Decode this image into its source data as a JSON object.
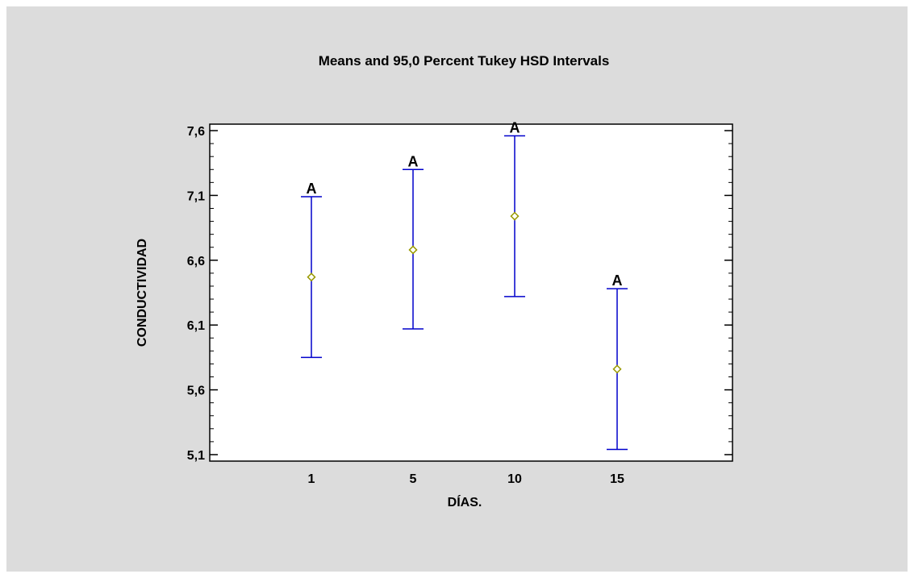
{
  "chart_data": {
    "type": "interval",
    "title": "Means and 95,0 Percent Tukey HSD Intervals",
    "xlabel": "DÍAS.",
    "ylabel": "CONDUCTIVIDAD",
    "categories": [
      "1",
      "5",
      "10",
      "15"
    ],
    "means": [
      6.47,
      6.68,
      6.94,
      5.76
    ],
    "lower": [
      5.85,
      6.07,
      6.32,
      5.14
    ],
    "upper": [
      7.09,
      7.3,
      7.56,
      6.38
    ],
    "group_labels": [
      "A",
      "A",
      "A",
      "A"
    ],
    "ylim": [
      5.05,
      7.65
    ],
    "yticks": [
      5.1,
      5.6,
      6.1,
      6.6,
      7.1,
      7.6
    ],
    "ytick_labels": [
      "5,1",
      "5,6",
      "6,1",
      "6,6",
      "7,1",
      "7,6"
    ],
    "grid": false,
    "colors": {
      "interval": "#0000cc",
      "marker": "#999900",
      "background": "#dcdcdc",
      "plot_area": "#ffffff"
    }
  }
}
